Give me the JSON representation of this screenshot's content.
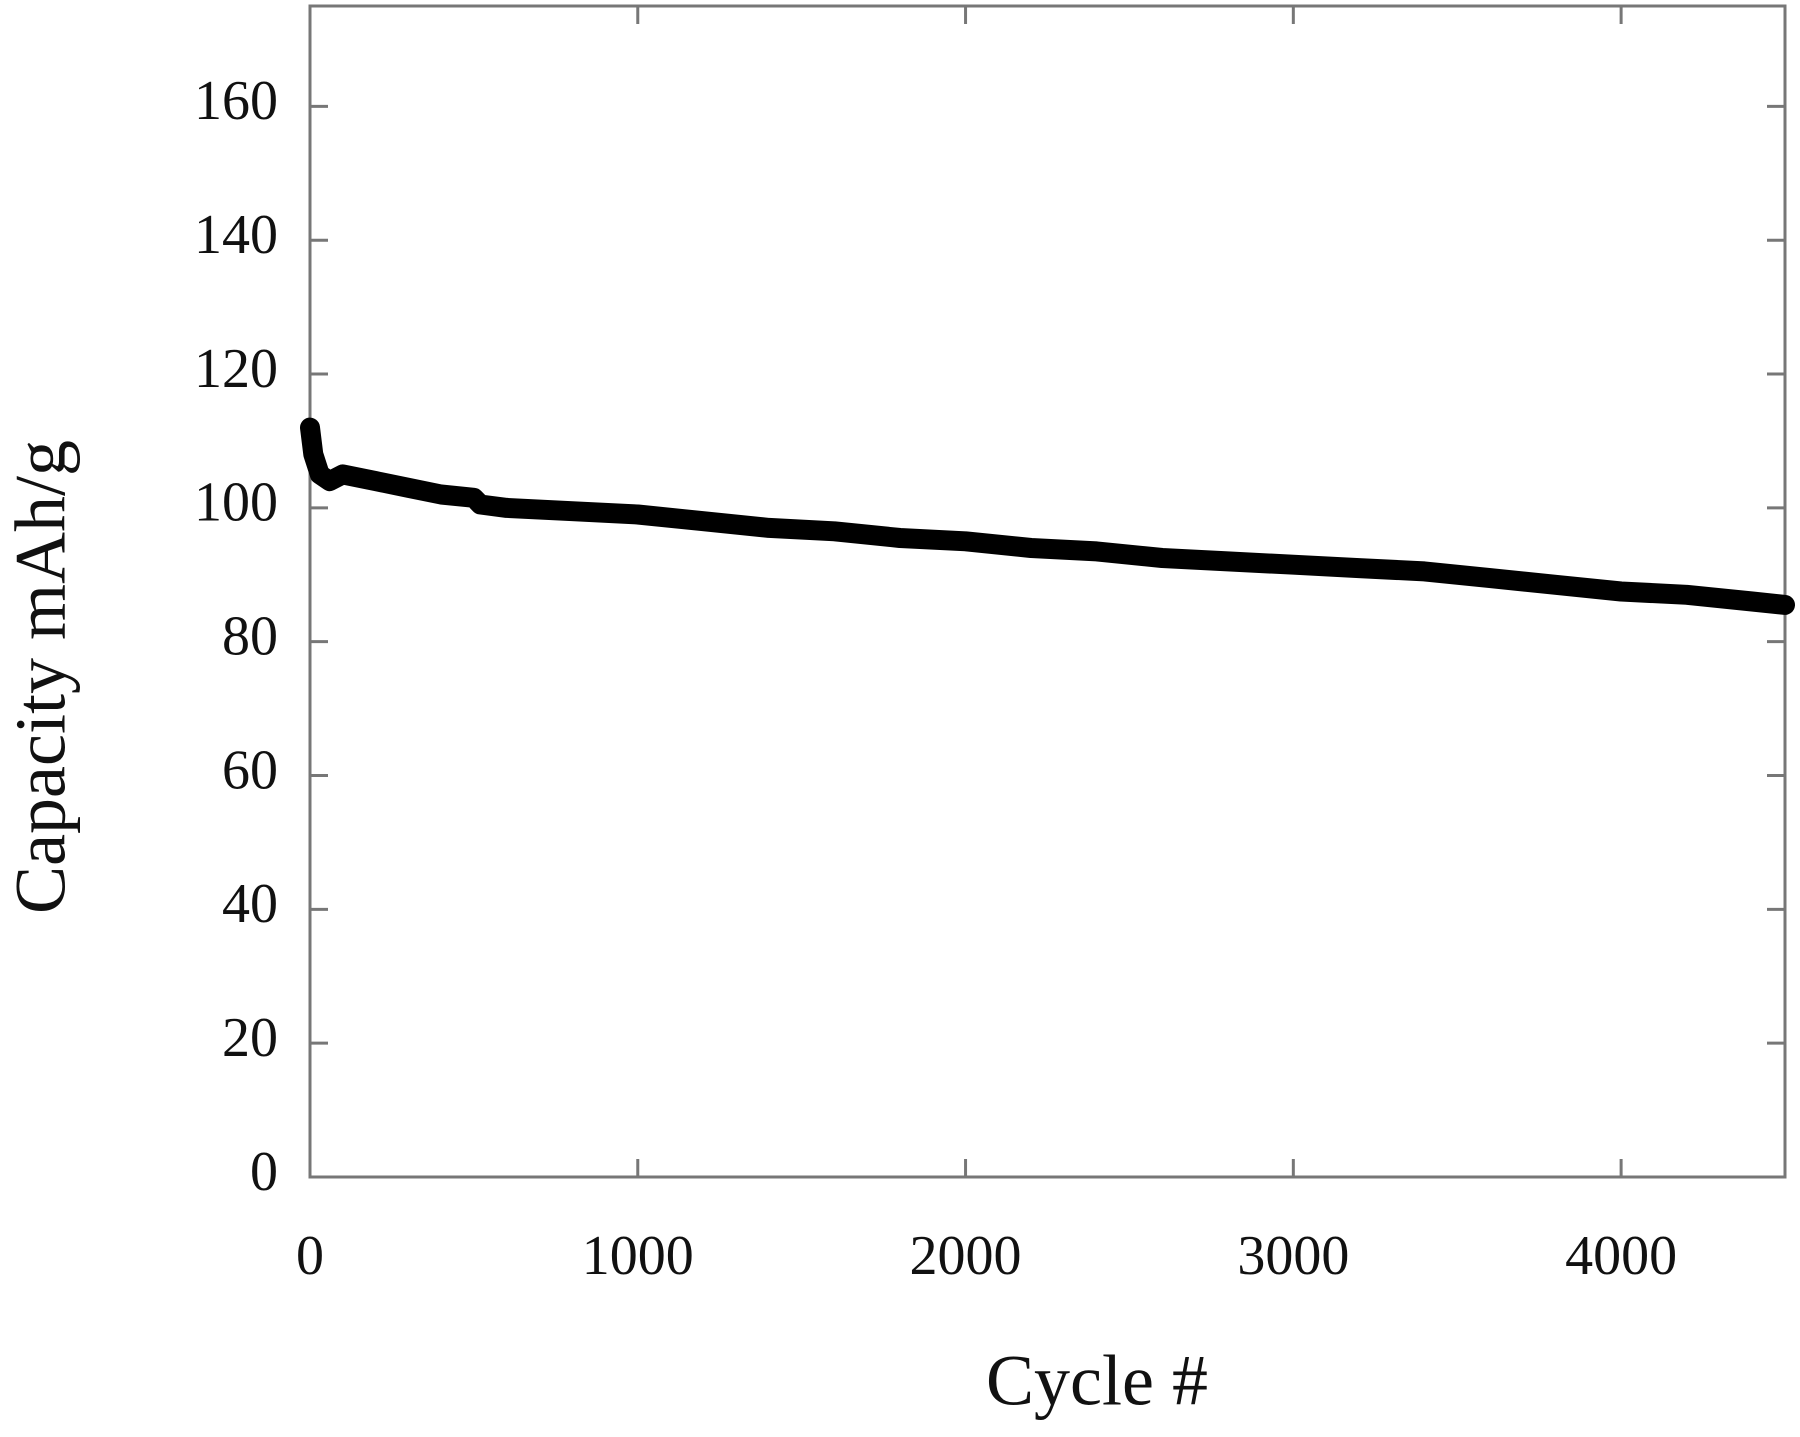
{
  "chart_data": {
    "type": "line",
    "xlabel": "Cycle #",
    "ylabel": "Capacity mAh/g",
    "x": [
      0,
      10,
      30,
      60,
      100,
      200,
      300,
      400,
      500,
      520,
      600,
      800,
      1000,
      1200,
      1400,
      1600,
      1800,
      2000,
      2200,
      2400,
      2600,
      2800,
      3000,
      3200,
      3400,
      3600,
      3800,
      4000,
      4200,
      4400,
      4500
    ],
    "series": [
      {
        "color": "#000000",
        "values": [
          112,
          108,
          105,
          104,
          105,
          104,
          103,
          102,
          101.5,
          100.5,
          100,
          99.5,
          99,
          98,
          97,
          96.5,
          95.5,
          95,
          94,
          93.5,
          92.5,
          92,
          91.5,
          91,
          90.5,
          89.5,
          88.5,
          87.5,
          87,
          86,
          85.5
        ]
      }
    ],
    "xlim": [
      0,
      4500
    ],
    "xticks": [
      0,
      1000,
      2000,
      3000,
      4000
    ],
    "ylim": [
      0,
      175
    ],
    "yticks": [
      0,
      20,
      40,
      60,
      80,
      100,
      120,
      140,
      160
    ],
    "grid": false
  }
}
